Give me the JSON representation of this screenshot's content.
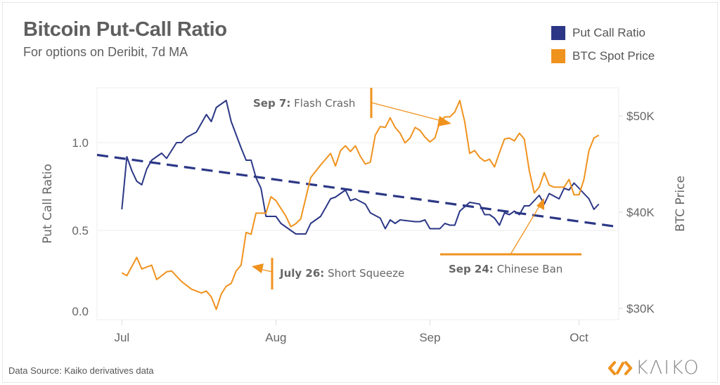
{
  "header": {
    "title": "Bitcoin Put-Call Ratio",
    "subtitle": "For options on Deribit, 7d MA"
  },
  "legend": [
    {
      "label": "Put Call Ratio",
      "color": "#2b3786"
    },
    {
      "label": "BTC Spot Price",
      "color": "#f0921e"
    }
  ],
  "footer": {
    "source": "Data Source: Kaiko derivatives data",
    "logo_text": "KAIKO"
  },
  "chart_data": {
    "type": "line",
    "title": "Bitcoin Put-Call Ratio",
    "subtitle": "For options on Deribit, 7d MA",
    "x_ticks": [
      {
        "label": "Jul",
        "date": "07-01"
      },
      {
        "label": "Aug",
        "date": "08-01"
      },
      {
        "label": "Sep",
        "date": "09-01"
      },
      {
        "label": "Oct",
        "date": "10-01"
      }
    ],
    "xlim": [
      "06-26",
      "10-09"
    ],
    "y_left": {
      "label": "Put Call Ratio",
      "ticks": [
        "0.0",
        "0.5",
        "1.0"
      ],
      "tick_values": [
        0,
        0.5,
        1.0
      ],
      "range": [
        0,
        1.3
      ]
    },
    "y_right": {
      "label": "BTC Price",
      "ticks": [
        "$30K",
        "$40K",
        "$50K"
      ],
      "tick_values": [
        30000,
        40000,
        50000
      ],
      "range": [
        29000,
        53000
      ]
    },
    "grid": true,
    "legend_position": "top-right",
    "series": [
      {
        "name": "Put Call Ratio",
        "axis": "left",
        "color": "#2b3786",
        "points": [
          [
            "07-01",
            0.62
          ],
          [
            "07-02",
            0.92
          ],
          [
            "07-03",
            0.84
          ],
          [
            "07-04",
            0.78
          ],
          [
            "07-05",
            0.76
          ],
          [
            "07-06",
            0.85
          ],
          [
            "07-07",
            0.9
          ],
          [
            "07-09",
            0.94
          ],
          [
            "07-10",
            0.91
          ],
          [
            "07-12",
            1.0
          ],
          [
            "07-13",
            1.0
          ],
          [
            "07-14",
            1.03
          ],
          [
            "07-16",
            1.06
          ],
          [
            "07-18",
            1.16
          ],
          [
            "07-19",
            1.12
          ],
          [
            "07-20",
            1.2
          ],
          [
            "07-22",
            1.24
          ],
          [
            "07-23",
            1.12
          ],
          [
            "07-25",
            0.97
          ],
          [
            "07-26",
            0.9
          ],
          [
            "07-27",
            0.9
          ],
          [
            "07-28",
            0.8
          ],
          [
            "07-29",
            0.74
          ],
          [
            "07-30",
            0.58
          ],
          [
            "08-01",
            0.58
          ],
          [
            "08-02",
            0.54
          ],
          [
            "08-04",
            0.5
          ],
          [
            "08-05",
            0.48
          ],
          [
            "08-07",
            0.48
          ],
          [
            "08-08",
            0.54
          ],
          [
            "08-10",
            0.58
          ],
          [
            "08-11",
            0.63
          ],
          [
            "08-12",
            0.68
          ],
          [
            "08-13",
            0.69
          ],
          [
            "08-15",
            0.73
          ],
          [
            "08-16",
            0.67
          ],
          [
            "08-17",
            0.68
          ],
          [
            "08-19",
            0.65
          ],
          [
            "08-20",
            0.6
          ],
          [
            "08-22",
            0.57
          ],
          [
            "08-23",
            0.51
          ],
          [
            "08-24",
            0.56
          ],
          [
            "08-25",
            0.54
          ],
          [
            "08-26",
            0.56
          ],
          [
            "08-29",
            0.55
          ],
          [
            "08-30",
            0.55
          ],
          [
            "08-31",
            0.56
          ],
          [
            "09-01",
            0.51
          ],
          [
            "09-03",
            0.51
          ],
          [
            "09-04",
            0.54
          ],
          [
            "09-05",
            0.53
          ],
          [
            "09-06",
            0.53
          ],
          [
            "09-07",
            0.61
          ],
          [
            "09-09",
            0.66
          ],
          [
            "09-11",
            0.65
          ],
          [
            "09-12",
            0.59
          ],
          [
            "09-13",
            0.59
          ],
          [
            "09-14",
            0.57
          ],
          [
            "09-15",
            0.53
          ],
          [
            "09-16",
            0.6
          ],
          [
            "09-17",
            0.59
          ],
          [
            "09-18",
            0.61
          ],
          [
            "09-19",
            0.59
          ],
          [
            "09-20",
            0.64
          ],
          [
            "09-21",
            0.64
          ],
          [
            "09-23",
            0.7
          ],
          [
            "09-24",
            0.65
          ],
          [
            "09-25",
            0.71
          ],
          [
            "09-27",
            0.68
          ],
          [
            "09-28",
            0.74
          ],
          [
            "09-29",
            0.73
          ],
          [
            "09-30",
            0.77
          ],
          [
            "10-01",
            0.74
          ],
          [
            "10-03",
            0.68
          ],
          [
            "10-04",
            0.62
          ],
          [
            "10-05",
            0.65
          ]
        ]
      },
      {
        "name": "BTC Spot Price",
        "axis": "right",
        "color": "#f0921e",
        "points": [
          [
            "07-01",
            33700
          ],
          [
            "07-02",
            33400
          ],
          [
            "07-04",
            35300
          ],
          [
            "07-05",
            34100
          ],
          [
            "07-07",
            34500
          ],
          [
            "07-08",
            33000
          ],
          [
            "07-10",
            33800
          ],
          [
            "07-11",
            33900
          ],
          [
            "07-13",
            32800
          ],
          [
            "07-15",
            32000
          ],
          [
            "07-17",
            31600
          ],
          [
            "07-18",
            31800
          ],
          [
            "07-19",
            31200
          ],
          [
            "07-20",
            29900
          ],
          [
            "07-21",
            31500
          ],
          [
            "07-22",
            32300
          ],
          [
            "07-23",
            32600
          ],
          [
            "07-24",
            33900
          ],
          [
            "07-25",
            34500
          ],
          [
            "07-26",
            37900
          ],
          [
            "07-27",
            37700
          ],
          [
            "07-28",
            39900
          ],
          [
            "07-30",
            39900
          ],
          [
            "07-31",
            41600
          ],
          [
            "08-01",
            41200
          ],
          [
            "08-03",
            39600
          ],
          [
            "08-04",
            38500
          ],
          [
            "08-05",
            38800
          ],
          [
            "08-06",
            39300
          ],
          [
            "08-08",
            43600
          ],
          [
            "08-10",
            44900
          ],
          [
            "08-12",
            46100
          ],
          [
            "08-13",
            44800
          ],
          [
            "08-14",
            46400
          ],
          [
            "08-15",
            46900
          ],
          [
            "08-16",
            46300
          ],
          [
            "08-17",
            46900
          ],
          [
            "08-18",
            45800
          ],
          [
            "08-19",
            45000
          ],
          [
            "08-20",
            45200
          ],
          [
            "08-21",
            48000
          ],
          [
            "08-22",
            48900
          ],
          [
            "08-23",
            48800
          ],
          [
            "08-24",
            49800
          ],
          [
            "08-25",
            48800
          ],
          [
            "08-26",
            48200
          ],
          [
            "08-27",
            47200
          ],
          [
            "08-28",
            47700
          ],
          [
            "08-29",
            48800
          ],
          [
            "08-30",
            48500
          ],
          [
            "08-31",
            47800
          ],
          [
            "09-01",
            47300
          ],
          [
            "09-02",
            47700
          ],
          [
            "09-03",
            49400
          ],
          [
            "09-04",
            49900
          ],
          [
            "09-05",
            49900
          ],
          [
            "09-06",
            50400
          ],
          [
            "09-07",
            51600
          ],
          [
            "09-08",
            49400
          ],
          [
            "09-09",
            46100
          ],
          [
            "09-10",
            46400
          ],
          [
            "09-11",
            45700
          ],
          [
            "09-12",
            45300
          ],
          [
            "09-13",
            45500
          ],
          [
            "09-14",
            44700
          ],
          [
            "09-15",
            46200
          ],
          [
            "09-16",
            47600
          ],
          [
            "09-17",
            47700
          ],
          [
            "09-18",
            47400
          ],
          [
            "09-19",
            48200
          ],
          [
            "09-20",
            47600
          ],
          [
            "09-21",
            44300
          ],
          [
            "09-22",
            42000
          ],
          [
            "09-23",
            42600
          ],
          [
            "09-24",
            44100
          ],
          [
            "09-25",
            42800
          ],
          [
            "09-26",
            42600
          ],
          [
            "09-28",
            42600
          ],
          [
            "09-29",
            43400
          ],
          [
            "09-30",
            41800
          ],
          [
            "10-01",
            41800
          ],
          [
            "10-02",
            43400
          ],
          [
            "10-03",
            46400
          ],
          [
            "10-04",
            47700
          ],
          [
            "10-05",
            48000
          ]
        ]
      }
    ],
    "trendline": {
      "axis": "left",
      "style": "dashed",
      "color": "#2b3786",
      "start": [
        "06-26",
        0.93
      ],
      "end": [
        "10-09",
        0.52
      ]
    },
    "annotations": [
      {
        "date_label": "Sep 7:",
        "text": "Flash Crash",
        "target": [
          "09-06",
          50000
        ]
      },
      {
        "date_label": "July 26:",
        "text": "Short Squeeze",
        "target": [
          "07-27",
          35000
        ]
      },
      {
        "date_label": "Sep 24:",
        "text": "Chinese Ban",
        "target": [
          "09-23",
          41300
        ]
      }
    ]
  }
}
